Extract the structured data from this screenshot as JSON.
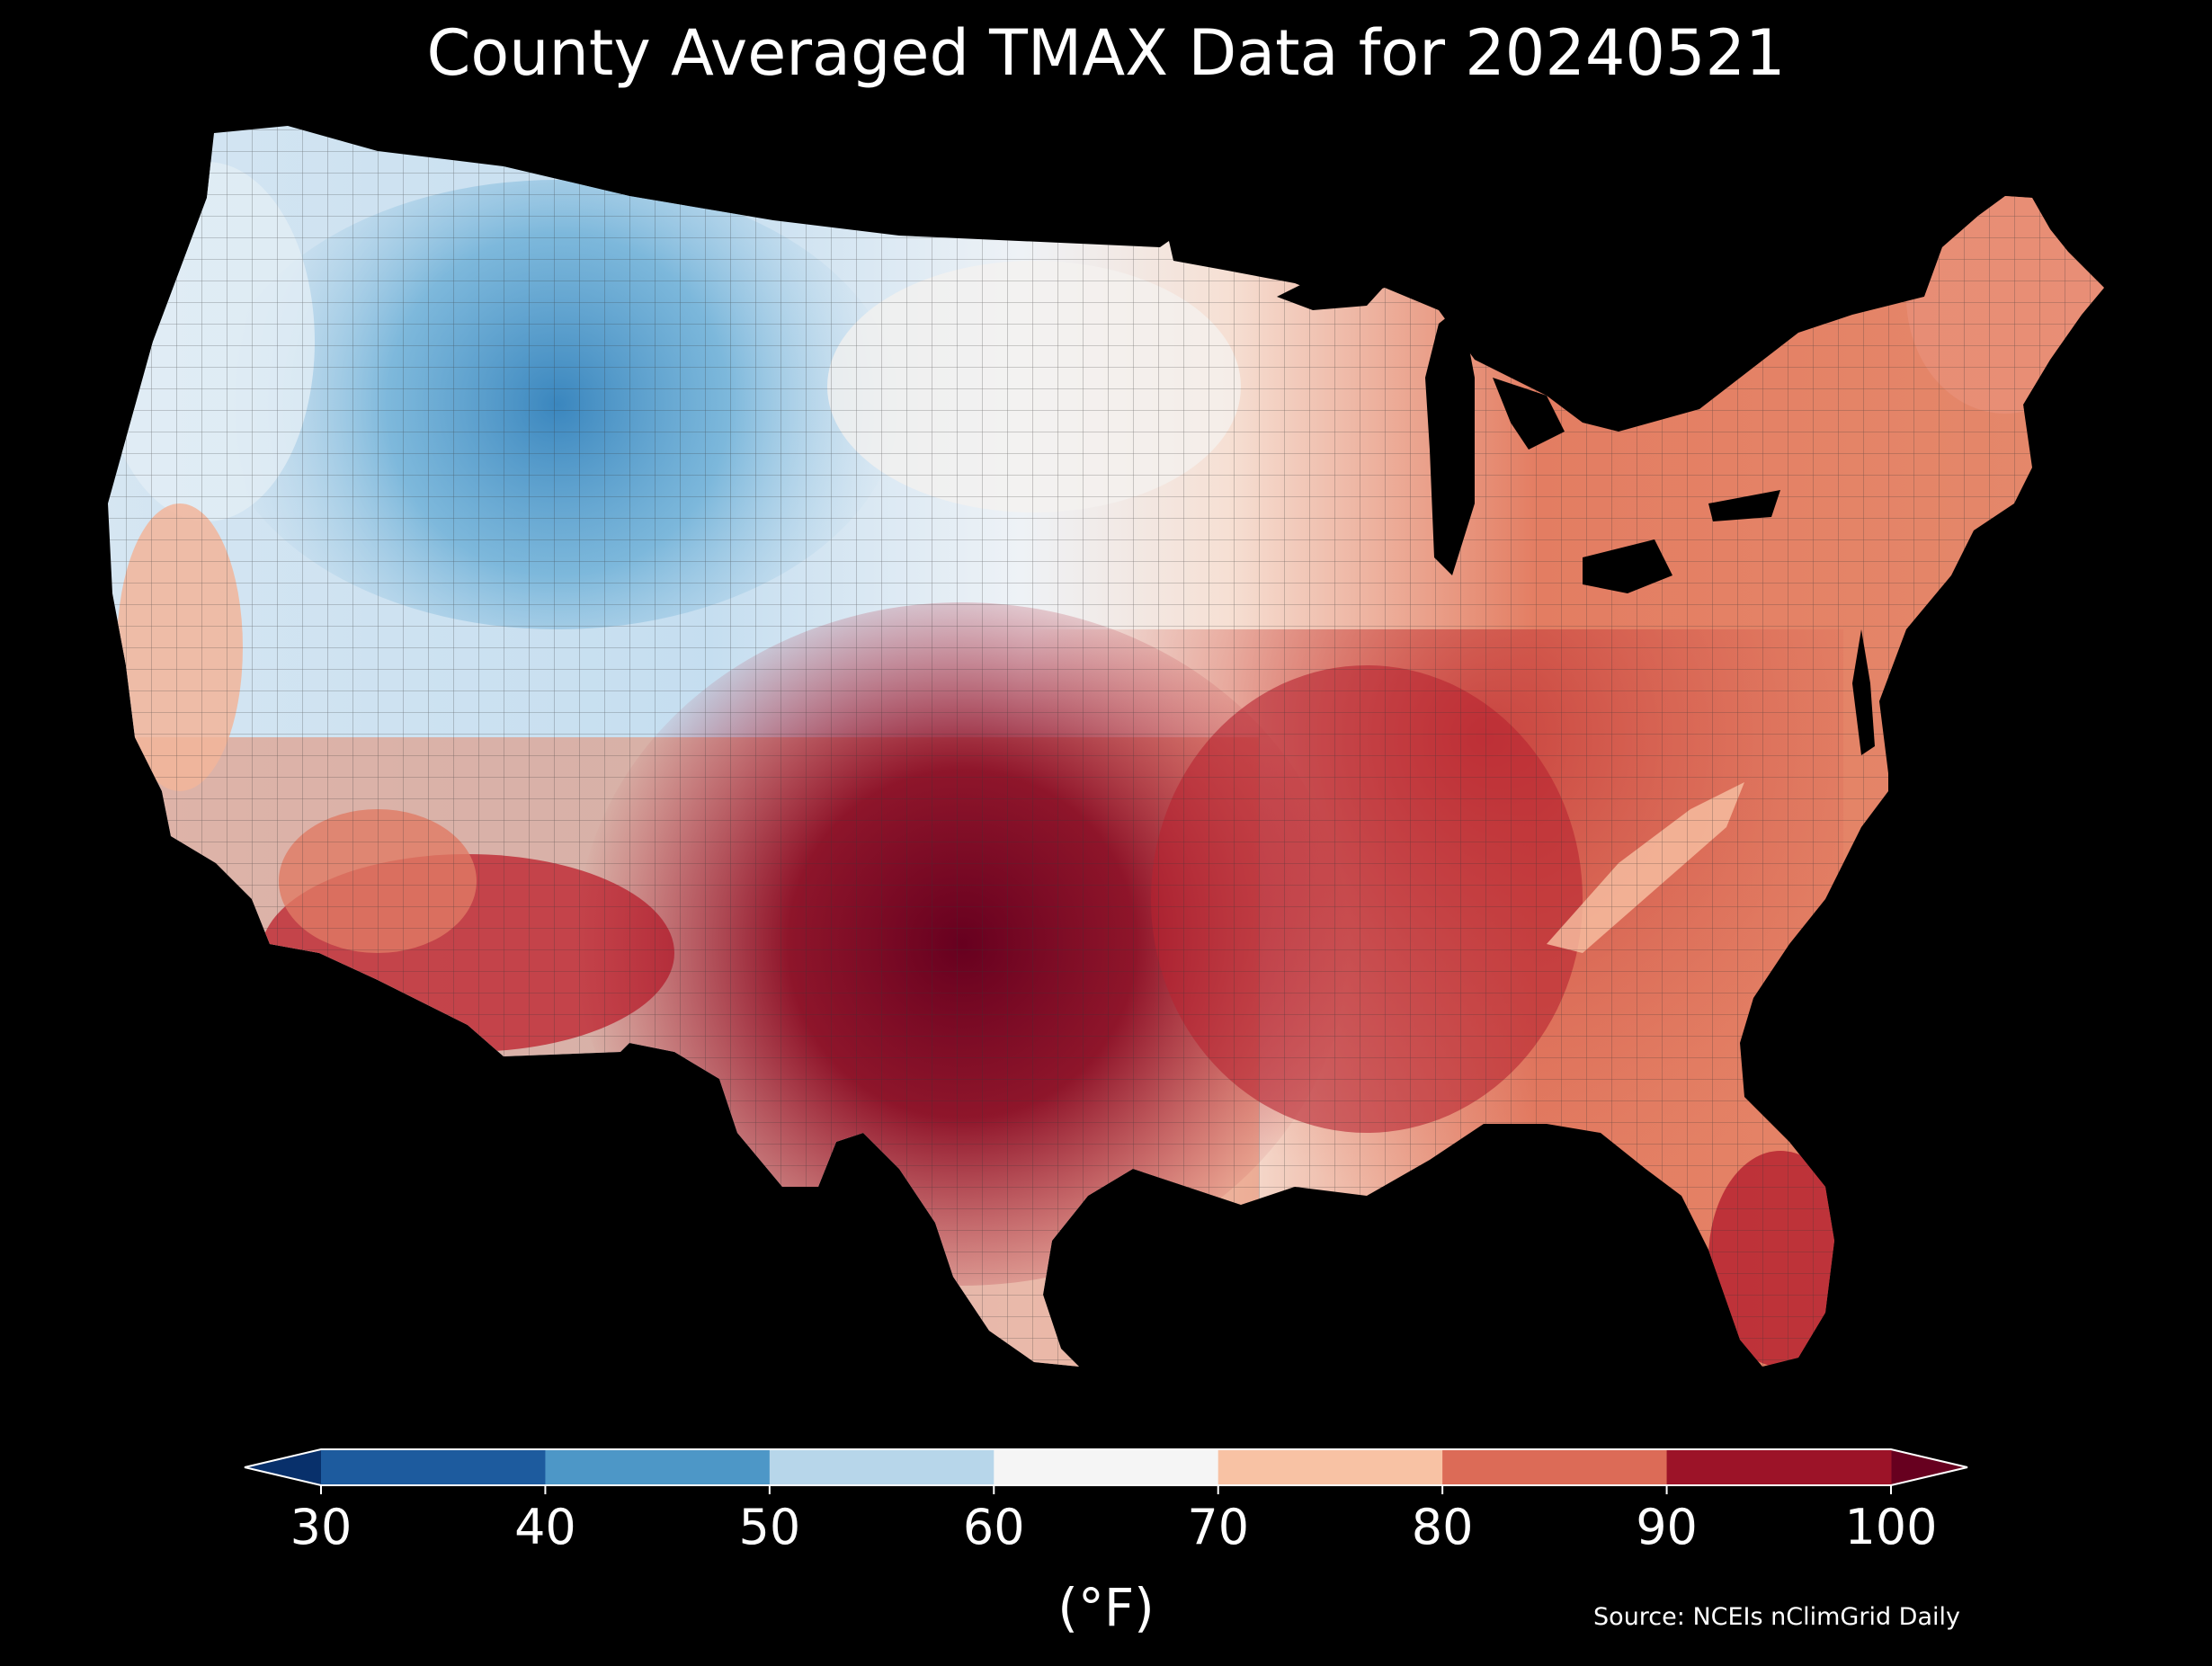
{
  "title": "County Averaged TMAX Data for 20240521",
  "source": "Source: NCEIs nClimGrid Daily",
  "colorbar": {
    "unit_label": "(°F)",
    "ticks": [
      "30",
      "40",
      "50",
      "60",
      "70",
      "80",
      "90",
      "100"
    ],
    "bins": [
      {
        "min": 30,
        "max": 40,
        "color": "#1d5b9e"
      },
      {
        "min": 40,
        "max": 50,
        "color": "#4d97c7"
      },
      {
        "min": 50,
        "max": 60,
        "color": "#b7d6ea"
      },
      {
        "min": 60,
        "max": 70,
        "color": "#f5f5f5"
      },
      {
        "min": 70,
        "max": 80,
        "color": "#f8c2a4"
      },
      {
        "min": 80,
        "max": 90,
        "color": "#dc6b57"
      },
      {
        "min": 90,
        "max": 100,
        "color": "#9c1328"
      }
    ],
    "under_color": "#08306b",
    "over_color": "#67001f",
    "extend": "both"
  },
  "map": {
    "region": "Contiguous United States counties",
    "land_background": "#000000",
    "outline_color": "#222222"
  }
}
